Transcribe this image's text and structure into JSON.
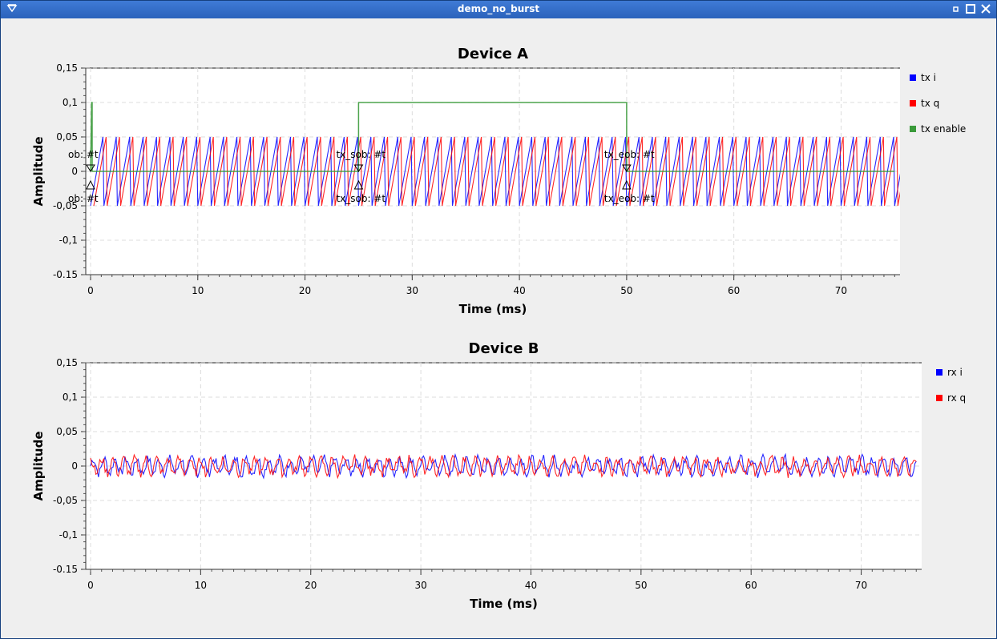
{
  "window": {
    "title": "demo_no_burst",
    "menu_icon": "window-menu-icon",
    "buttons": [
      "minimize-icon",
      "maximize-icon",
      "close-icon"
    ]
  },
  "colors": {
    "tx_i": "#0000ff",
    "tx_q": "#ff0000",
    "tx_enable": "#3a9a3a",
    "rx_i": "#0000ff",
    "rx_q": "#ff0000"
  },
  "chart_data": [
    {
      "type": "line",
      "title": "Device A",
      "xlabel": "Time (ms)",
      "ylabel": "Amplitude",
      "xlim": [
        0,
        75.2
      ],
      "ylim": [
        -0.15,
        0.15
      ],
      "xticks": [
        "0",
        "10",
        "20",
        "30",
        "40",
        "50",
        "60",
        "70"
      ],
      "yticks": [
        "0,15",
        "0,1",
        "0,05",
        "0",
        "-0,05",
        "-0,1",
        "-0.15"
      ],
      "grid": true,
      "legend_position": "right",
      "series": [
        {
          "name": "tx i",
          "shape": "sawtooth",
          "amplitude": 0.05,
          "period_ms": 1.25
        },
        {
          "name": "tx q",
          "shape": "sawtooth",
          "amplitude": 0.05,
          "period_ms": 1.25,
          "phase_ms": 0.3
        },
        {
          "name": "tx enable",
          "shape": "step",
          "points": [
            [
              0,
              0
            ],
            [
              0.1,
              0.1
            ],
            [
              0.15,
              0.1
            ],
            [
              0.15,
              0
            ],
            [
              25,
              0
            ],
            [
              25,
              0.1
            ],
            [
              50,
              0.1
            ],
            [
              50,
              0
            ],
            [
              75,
              0
            ]
          ]
        }
      ],
      "tags": [
        {
          "x": 0,
          "label_top": "ob: #t",
          "label_bottom": "ob: #t"
        },
        {
          "x": 25,
          "label_top": "tx_sob: #t",
          "label_bottom": "tx_sob: #t"
        },
        {
          "x": 50,
          "label_top": "tx_eob: #t",
          "label_bottom": "tx_eob: #t"
        }
      ]
    },
    {
      "type": "line",
      "title": "Device B",
      "xlabel": "Time (ms)",
      "ylabel": "Amplitude",
      "xlim": [
        0,
        75.2
      ],
      "ylim": [
        -0.15,
        0.15
      ],
      "xticks": [
        "0",
        "10",
        "20",
        "30",
        "40",
        "50",
        "60",
        "70"
      ],
      "yticks": [
        "0,15",
        "0,1",
        "0,05",
        "0",
        "-0,05",
        "-0,1",
        "-0.15"
      ],
      "grid": true,
      "legend_position": "right",
      "series": [
        {
          "name": "rx i",
          "shape": "noisy-sine",
          "amplitude": 0.015
        },
        {
          "name": "rx q",
          "shape": "noisy-sine",
          "amplitude": 0.015
        }
      ]
    }
  ]
}
